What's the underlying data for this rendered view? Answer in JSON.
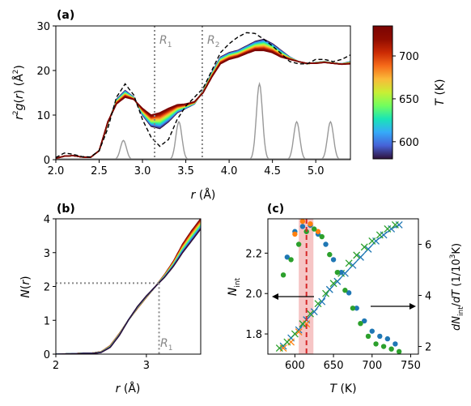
{
  "colors": {
    "axis": "#000000",
    "grey": "#999999",
    "blue": "#1f77b4",
    "orange": "#ff7f0e",
    "green": "#2ca02c",
    "red": "#d62728",
    "band": "#f4b6b6"
  },
  "chart_data": [
    {
      "panel": "(a)",
      "type": "line",
      "xlabel": "r (Å)",
      "ylabel": "r²g(r) (Å²)",
      "xlim": [
        2.0,
        5.4
      ],
      "ylim": [
        0,
        30
      ],
      "xticks": [
        "2.0",
        "2.5",
        "3.0",
        "3.5",
        "4.0",
        "4.5",
        "5.0"
      ],
      "yticks": [
        "0",
        "10",
        "20",
        "30"
      ],
      "vlines": [
        {
          "label": "R1",
          "x": 3.14
        },
        {
          "label": "R2",
          "x": 3.69
        }
      ],
      "colorbar": {
        "label": "T (K)",
        "range": [
          580,
          735
        ],
        "ticks": [
          "600",
          "650",
          "700"
        ],
        "colormap": "turbo"
      },
      "series": [
        {
          "style": "black-dashed",
          "x": [
            2.0,
            2.1,
            2.2,
            2.3,
            2.4,
            2.5,
            2.6,
            2.7,
            2.8,
            2.9,
            3.0,
            3.1,
            3.2,
            3.3,
            3.4,
            3.5,
            3.6,
            3.7,
            3.8,
            3.9,
            4.0,
            4.1,
            4.2,
            4.3,
            4.4,
            4.5,
            4.6,
            4.7,
            4.8,
            4.9,
            5.0,
            5.1,
            5.2,
            5.3,
            5.4
          ],
          "y": [
            0.5,
            1.5,
            1.2,
            0.7,
            0.6,
            2.0,
            7.0,
            14.0,
            17.0,
            14.5,
            9.0,
            5.0,
            3.0,
            4.5,
            9.0,
            12.0,
            14.0,
            16.0,
            20.0,
            24.0,
            26.0,
            27.5,
            28.5,
            28.3,
            27.0,
            25.5,
            23.8,
            22.0,
            21.5,
            21.5,
            22.5,
            22.5,
            22.0,
            22.5,
            23.5
          ]
        },
        {
          "name": "580",
          "temp": 580,
          "x": [
            2.0,
            2.1,
            2.2,
            2.3,
            2.4,
            2.5,
            2.6,
            2.7,
            2.8,
            2.9,
            3.0,
            3.1,
            3.2,
            3.3,
            3.4,
            3.5,
            3.6,
            3.7,
            3.8,
            3.9,
            4.0,
            4.1,
            4.2,
            4.3,
            4.4,
            4.5,
            4.6,
            4.7,
            4.8,
            4.9,
            5.0,
            5.1,
            5.2,
            5.3,
            5.4
          ],
          "y": [
            0.3,
            0.8,
            0.9,
            0.6,
            0.5,
            2.0,
            8.0,
            13.5,
            15.5,
            14.0,
            10.0,
            7.5,
            7.0,
            8.5,
            10.5,
            11.5,
            12.5,
            15.5,
            19.5,
            23.0,
            24.0,
            24.5,
            25.5,
            26.5,
            27.0,
            26.0,
            24.5,
            23.0,
            22.0,
            21.5,
            21.8,
            22.0,
            21.7,
            21.5,
            22.0
          ]
        },
        {
          "name": "735",
          "temp": 735,
          "x": [
            2.0,
            2.1,
            2.2,
            2.3,
            2.4,
            2.5,
            2.6,
            2.7,
            2.8,
            2.9,
            3.0,
            3.1,
            3.2,
            3.3,
            3.4,
            3.5,
            3.6,
            3.7,
            3.8,
            3.9,
            4.0,
            4.1,
            4.2,
            4.3,
            4.4,
            4.5,
            4.6,
            4.7,
            4.8,
            4.9,
            5.0,
            5.1,
            5.2,
            5.3,
            5.4
          ],
          "y": [
            0.3,
            0.8,
            0.9,
            0.6,
            0.5,
            2.0,
            8.5,
            12.5,
            14.0,
            13.5,
            11.5,
            10.0,
            10.5,
            11.5,
            12.3,
            12.5,
            13.0,
            15.0,
            18.5,
            21.5,
            22.5,
            23.0,
            23.8,
            24.5,
            24.5,
            24.0,
            23.0,
            22.5,
            22.0,
            21.6,
            21.6,
            21.8,
            21.6,
            21.4,
            21.5
          ]
        },
        {
          "style": "grey-peaks",
          "peaks": [
            {
              "x": 2.78,
              "h": 4.3
            },
            {
              "x": 3.42,
              "h": 8.5
            },
            {
              "x": 4.35,
              "h": 17.0
            },
            {
              "x": 4.78,
              "h": 8.5
            },
            {
              "x": 5.17,
              "h": 8.5
            }
          ]
        }
      ]
    },
    {
      "panel": "(b)",
      "type": "line",
      "xlabel": "r (Å)",
      "ylabel": "N(r)",
      "xlim": [
        2.0,
        3.6
      ],
      "ylim": [
        0,
        4
      ],
      "xticks": [
        "2",
        "3"
      ],
      "yticks": [
        "0",
        "1",
        "2",
        "3",
        "4"
      ],
      "annotation": {
        "label": "R1",
        "x": 3.14,
        "y": 2.1
      },
      "series": [
        {
          "name": "580",
          "temp": 580,
          "x": [
            2.0,
            2.2,
            2.3,
            2.4,
            2.5,
            2.6,
            2.7,
            2.8,
            2.9,
            3.0,
            3.1,
            3.2,
            3.3,
            3.4,
            3.5,
            3.6
          ],
          "y": [
            0.0,
            0.01,
            0.02,
            0.02,
            0.05,
            0.2,
            0.55,
            1.0,
            1.4,
            1.72,
            2.0,
            2.27,
            2.6,
            3.0,
            3.35,
            3.7
          ]
        },
        {
          "name": "735",
          "temp": 735,
          "x": [
            2.0,
            2.2,
            2.3,
            2.4,
            2.5,
            2.6,
            2.7,
            2.8,
            2.9,
            3.0,
            3.1,
            3.2,
            3.3,
            3.4,
            3.5,
            3.6
          ],
          "y": [
            0.0,
            0.01,
            0.03,
            0.03,
            0.07,
            0.25,
            0.6,
            1.0,
            1.35,
            1.68,
            2.0,
            2.35,
            2.75,
            3.25,
            3.65,
            4.0
          ]
        }
      ]
    },
    {
      "panel": "(c)",
      "type": "scatter",
      "xlabel": "T (K)",
      "ylabel": "N_int",
      "ylabel_right": "dN_int/dT (1/10³K)",
      "xlim": [
        565,
        760
      ],
      "ylim": [
        1.7,
        2.37
      ],
      "ylim_right": [
        1.7,
        7.0
      ],
      "xticks": [
        "600",
        "650",
        "700",
        "750"
      ],
      "yticks": [
        "1.8",
        "2.0",
        "2.2"
      ],
      "yticks_right": [
        "2",
        "4",
        "6"
      ],
      "vline": {
        "x": 615,
        "band": [
          605,
          624
        ]
      },
      "series": [
        {
          "name": "N_int blue",
          "marker": "x",
          "color": "blue",
          "x": [
            585,
            595,
            605,
            615,
            625,
            635,
            645,
            655,
            665,
            675,
            685,
            695,
            705,
            715,
            725,
            735
          ],
          "y": [
            1.74,
            1.78,
            1.82,
            1.87,
            1.91,
            1.96,
            2.02,
            2.06,
            2.1,
            2.14,
            2.18,
            2.22,
            2.26,
            2.29,
            2.32,
            2.34
          ]
        },
        {
          "name": "N_int orange",
          "marker": "x",
          "color": "orange",
          "x": [
            585,
            595,
            605,
            615
          ],
          "y": [
            1.73,
            1.76,
            1.81,
            1.85
          ]
        },
        {
          "name": "N_int green",
          "marker": "x",
          "color": "green",
          "x": [
            580,
            590,
            600,
            610,
            620,
            630,
            640,
            650,
            660,
            670,
            680,
            690,
            700,
            710,
            720,
            730
          ],
          "y": [
            1.73,
            1.76,
            1.8,
            1.85,
            1.9,
            1.95,
            2.0,
            2.05,
            2.1,
            2.15,
            2.19,
            2.23,
            2.26,
            2.29,
            2.32,
            2.34
          ]
        },
        {
          "name": "dN blue",
          "marker": "o",
          "color": "blue",
          "axis": "right",
          "x": [
            590,
            600,
            610,
            620,
            630,
            640,
            650,
            660,
            670,
            680,
            690,
            700,
            710,
            720,
            730
          ],
          "y": [
            5.5,
            6.5,
            6.7,
            6.75,
            6.4,
            6.0,
            5.4,
            4.9,
            4.1,
            3.5,
            3.0,
            2.6,
            2.4,
            2.3,
            2.1
          ]
        },
        {
          "name": "dN orange",
          "marker": "o",
          "color": "orange",
          "axis": "right",
          "x": [
            600,
            610,
            620,
            630
          ],
          "y": [
            6.4,
            6.9,
            6.8,
            6.5
          ]
        },
        {
          "name": "dN green",
          "marker": "o",
          "color": "green",
          "axis": "right",
          "x": [
            585,
            595,
            605,
            615,
            625,
            635,
            645,
            655,
            665,
            675,
            685,
            695,
            705,
            715,
            725,
            735
          ],
          "y": [
            4.8,
            5.4,
            6.0,
            6.5,
            6.6,
            6.3,
            5.6,
            4.9,
            4.2,
            3.5,
            2.9,
            2.4,
            2.1,
            2.0,
            1.9,
            1.8
          ]
        }
      ]
    }
  ],
  "labels": {
    "panel_a": "(a)",
    "panel_b": "(b)",
    "panel_c": "(c)",
    "r_axis": "r (Å)",
    "a_ylabel": "r²g(r) (Å²)",
    "b_ylabel": "N(r)",
    "c_xlabel": "T (K)",
    "c_ylabel": "N_int",
    "c_ylabel_right": "dN_int/dT (1/10³K)",
    "R1": "R1",
    "R2": "R2",
    "colorbar_label": "T (K)"
  }
}
